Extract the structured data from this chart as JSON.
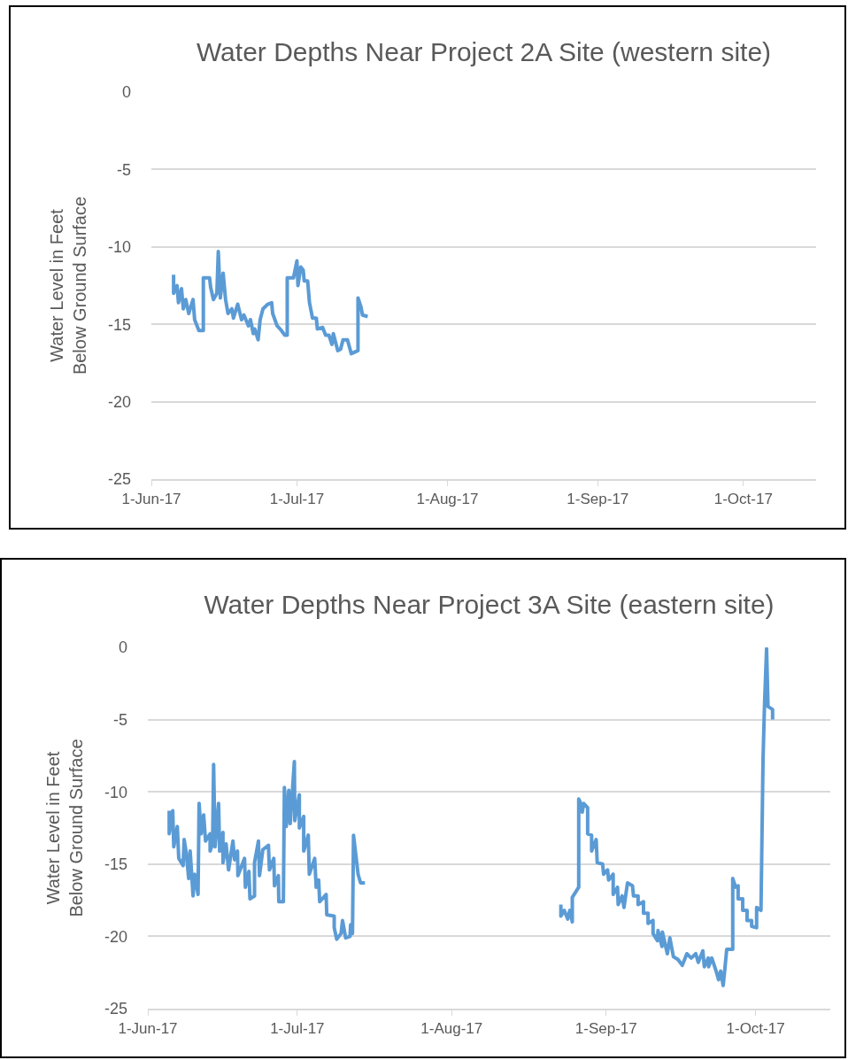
{
  "chart_data": [
    {
      "type": "line",
      "title": "Water Depths Near Project 2A Site (western site)",
      "ylabel": "Water Level in Feet\nBelow Ground Surface",
      "grid": "y",
      "marker": "none",
      "line_style": "solid",
      "xlim": [
        "2017-06-01",
        "2017-10-16"
      ],
      "xticks": [
        {
          "value": "2017-06-01",
          "label": "1-Jun-17"
        },
        {
          "value": "2017-07-01",
          "label": "1-Jul-17"
        },
        {
          "value": "2017-08-01",
          "label": "1-Aug-17"
        },
        {
          "value": "2017-09-01",
          "label": "1-Sep-17"
        },
        {
          "value": "2017-10-01",
          "label": "1-Oct-17"
        }
      ],
      "ylim": [
        -25,
        0
      ],
      "yticks": [
        -25,
        -20,
        -15,
        -10,
        -5,
        0
      ],
      "x": [
        "2017-06-05T14:00",
        "2017-06-05T14:00",
        "2017-06-06T07:00",
        "2017-06-06T14:00",
        "2017-06-07T05:00",
        "2017-06-07T14:00",
        "2017-06-08T02:00",
        "2017-06-08T17:00",
        "2017-06-09T14:00",
        "2017-06-09T22:00",
        "2017-06-10T19:00",
        "2017-06-11T17:00",
        "2017-06-11T17:00",
        "2017-06-13T00:00",
        "2017-06-13T05:00",
        "2017-06-13T19:00",
        "2017-06-14T12:00",
        "2017-06-14T19:00",
        "2017-06-15T05:00",
        "2017-06-15T19:00",
        "2017-06-16T07:00",
        "2017-06-16T19:00",
        "2017-06-17T14:00",
        "2017-06-17T22:00",
        "2017-06-18T19:00",
        "2017-06-19T14:00",
        "2017-06-20T02:00",
        "2017-06-21T00:00",
        "2017-06-21T10:00",
        "2017-06-22T00:00",
        "2017-06-22T07:00",
        "2017-06-23T00:00",
        "2017-06-23T10:00",
        "2017-06-24T00:00",
        "2017-06-25T00:00",
        "2017-06-25T19:00",
        "2017-06-26T00:00",
        "2017-06-26T22:00",
        "2017-06-27T19:00",
        "2017-06-28T12:00",
        "2017-06-29T00:00",
        "2017-06-29T00:00",
        "2017-06-30T07:00",
        "2017-07-01T00:00",
        "2017-07-01T05:00",
        "2017-07-01T19:00",
        "2017-07-02T07:00",
        "2017-07-02T12:00",
        "2017-07-03T05:00",
        "2017-07-03T14:00",
        "2017-07-04T05:00",
        "2017-07-05T00:00",
        "2017-07-05T05:00",
        "2017-07-06T07:00",
        "2017-07-06T22:00",
        "2017-07-07T14:00",
        "2017-07-08T05:00",
        "2017-07-08T12:00",
        "2017-07-09T10:00",
        "2017-07-10T00:00",
        "2017-07-10T12:00",
        "2017-07-11T10:00",
        "2017-07-12T05:00",
        "2017-07-13T14:00",
        "2017-07-13T14:00",
        "2017-07-14T05:00",
        "2017-07-14T12:00",
        "2017-07-15T14:00"
      ],
      "series": [
        {
          "color": "#5b9bd5",
          "values": [
            -11.8,
            -13.0,
            -12.5,
            -13.6,
            -12.7,
            -14.0,
            -13.4,
            -14.3,
            -13.4,
            -14.7,
            -15.4,
            -15.4,
            -12.0,
            -12.0,
            -12.6,
            -13.4,
            -13.0,
            -10.3,
            -13.3,
            -11.7,
            -13.4,
            -14.3,
            -14.0,
            -14.6,
            -13.7,
            -14.7,
            -14.4,
            -15.1,
            -14.7,
            -15.6,
            -15.3,
            -16.0,
            -14.7,
            -14.0,
            -13.7,
            -13.6,
            -14.3,
            -15.1,
            -15.4,
            -15.7,
            -15.7,
            -12.0,
            -12.0,
            -10.9,
            -12.5,
            -11.3,
            -11.5,
            -12.2,
            -12.2,
            -13.6,
            -14.6,
            -14.6,
            -15.3,
            -15.2,
            -15.7,
            -15.7,
            -16.3,
            -15.6,
            -16.7,
            -16.6,
            -16.0,
            -16.0,
            -16.9,
            -16.7,
            -13.3,
            -13.9,
            -14.4,
            -14.5
          ]
        }
      ]
    },
    {
      "type": "line",
      "title": "Water Depths Near Project 3A Site (eastern site)",
      "ylabel": "Water Level in Feet\nBelow Ground Surface",
      "grid": "y",
      "marker": "none",
      "line_style": "solid",
      "xlim": [
        "2017-06-01",
        "2017-10-16"
      ],
      "xticks": [
        {
          "value": "2017-06-01",
          "label": "1-Jun-17"
        },
        {
          "value": "2017-07-01",
          "label": "1-Jul-17"
        },
        {
          "value": "2017-08-01",
          "label": "1-Aug-17"
        },
        {
          "value": "2017-09-01",
          "label": "1-Sep-17"
        },
        {
          "value": "2017-10-01",
          "label": "1-Oct-17"
        }
      ],
      "ylim": [
        -25,
        0
      ],
      "yticks": [
        -25,
        -20,
        -15,
        -10,
        -5,
        0
      ],
      "x": [
        "2017-06-05T07:00",
        "2017-06-05T07:00",
        "2017-06-06T00:00",
        "2017-06-06T05:00",
        "2017-06-06T22:00",
        "2017-06-07T05:00",
        "2017-06-08T02:00",
        "2017-06-08T07:00",
        "2017-06-08T17:00",
        "2017-06-09T05:00",
        "2017-06-09T12:00",
        "2017-06-10T02:00",
        "2017-06-10T10:00",
        "2017-06-11T02:00",
        "2017-06-11T07:00",
        "2017-06-11T17:00",
        "2017-06-12T05:00",
        "2017-06-12T14:00",
        "2017-06-13T12:00",
        "2017-06-13T12:00",
        "2017-06-14T00:00",
        "2017-06-14T05:00",
        "2017-06-14T12:00",
        "2017-06-15T05:00",
        "2017-06-15T10:00",
        "2017-06-16T02:00",
        "2017-06-16T02:00",
        "2017-06-16T17:00",
        "2017-06-17T05:00",
        "2017-06-18T02:00",
        "2017-06-18T10:00",
        "2017-06-19T00:00",
        "2017-06-19T02:00",
        "2017-06-20T10:00",
        "2017-06-20T14:00",
        "2017-06-21T07:00",
        "2017-06-21T12:00",
        "2017-06-22T10:00",
        "2017-06-22T10:00",
        "2017-06-23T05:00",
        "2017-06-23T10:00",
        "2017-06-24T02:00",
        "2017-06-25T05:00",
        "2017-06-25T10:00",
        "2017-06-26T07:00",
        "2017-06-26T10:00",
        "2017-06-27T05:00",
        "2017-06-27T07:00",
        "2017-06-28T05:00",
        "2017-06-28T10:00",
        "2017-06-28T19:00",
        "2017-06-29T07:00",
        "2017-06-29T14:00",
        "2017-06-30T10:00",
        "2017-06-30T12:00",
        "2017-07-01T10:00",
        "2017-07-01T10:00",
        "2017-07-02T07:00",
        "2017-07-02T07:00",
        "2017-07-03T05:00",
        "2017-07-03T10:00",
        "2017-07-04T12:00",
        "2017-07-04T19:00",
        "2017-07-05T07:00",
        "2017-07-05T12:00",
        "2017-07-06T19:00",
        "2017-07-06T22:00",
        "2017-07-08T10:00",
        "2017-07-08T10:00",
        "2017-07-08T22:00",
        "2017-07-09T19:00",
        "2017-07-10T02:00",
        "2017-07-10T17:00",
        "2017-07-11T14:00",
        "2017-07-11T17:00",
        "2017-07-12T02:00",
        "2017-07-12T07:00",
        "2017-07-13T05:00",
        "2017-07-13T17:00",
        "2017-07-14T14:00",
        "2017-07-25",
        "2017-08-22T22:00",
        "2017-08-22T22:00",
        "2017-08-23T14:00",
        "2017-08-24T07:00",
        "2017-08-24T17:00",
        "2017-08-25T05:00",
        "2017-08-25T05:00",
        "2017-08-26T12:00",
        "2017-08-26T12:00",
        "2017-08-26T19:00",
        "2017-08-27T05:00",
        "2017-08-27T12:00",
        "2017-08-28T07:00",
        "2017-08-28T07:00",
        "2017-08-29T02:00",
        "2017-08-29T02:00",
        "2017-08-30T00:00",
        "2017-08-30T05:00",
        "2017-08-31T07:00",
        "2017-08-31T12:00",
        "2017-09-01T07:00",
        "2017-09-01T12:00",
        "2017-09-02T10:00",
        "2017-09-02T10:00",
        "2017-09-03T07:00",
        "2017-09-03T10:00",
        "2017-09-04T05:00",
        "2017-09-04T14:00",
        "2017-09-05T07:00",
        "2017-09-06T07:00",
        "2017-09-06T12:00",
        "2017-09-07T10:00",
        "2017-09-07T10:00",
        "2017-09-08T12:00",
        "2017-09-08T12:00",
        "2017-09-09T10:00",
        "2017-09-09T10:00",
        "2017-09-10T10:00",
        "2017-09-10T10:00",
        "2017-09-11T07:00",
        "2017-09-11T10:00",
        "2017-09-12T05:00",
        "2017-09-12T07:00",
        "2017-09-13T07:00",
        "2017-09-13T19:00",
        "2017-09-14T12:00",
        "2017-09-15T10:00",
        "2017-09-16T07:00",
        "2017-09-17T05:00",
        "2017-09-18T02:00",
        "2017-09-19T00:00",
        "2017-09-19T12:00",
        "2017-09-20T10:00",
        "2017-09-20T17:00",
        "2017-09-21T12:00",
        "2017-09-21T14:00",
        "2017-09-22T05:00",
        "2017-09-23T02:00",
        "2017-09-23T14:00",
        "2017-09-24T00:00",
        "2017-09-24T12:00",
        "2017-09-24T19:00",
        "2017-09-25T05:00",
        "2017-09-26T10:00",
        "2017-09-26T10:00",
        "2017-09-27T00:00",
        "2017-09-27T12:00",
        "2017-09-27T12:00",
        "2017-09-28T10:00",
        "2017-09-28T10:00",
        "2017-09-29T07:00",
        "2017-09-29T07:00",
        "2017-09-30T05:00",
        "2017-09-30T05:00",
        "2017-10-01T05:00",
        "2017-10-01T05:00",
        "2017-10-02T02:00",
        "2017-10-02T12:00",
        "2017-10-02T19:00",
        "2017-10-03T05:00",
        "2017-10-03T12:00",
        "2017-10-04T10:00",
        "2017-10-04T10:00"
      ],
      "series": [
        {
          "color": "#5b9bd5",
          "values": [
            -11.3,
            -12.9,
            -11.3,
            -13.8,
            -12.4,
            -14.6,
            -15.1,
            -13.3,
            -14.2,
            -16.0,
            -14.1,
            -17.2,
            -15.7,
            -17.1,
            -10.8,
            -12.9,
            -11.6,
            -13.4,
            -12.9,
            -14.1,
            -13.6,
            -8.1,
            -13.8,
            -10.8,
            -14.1,
            -12.8,
            -14.9,
            -13.6,
            -15.4,
            -13.4,
            -14.7,
            -14.1,
            -15.8,
            -14.6,
            -16.6,
            -15.5,
            -17.4,
            -17.2,
            -14.9,
            -13.4,
            -15.8,
            -14.0,
            -13.7,
            -15.4,
            -14.6,
            -16.5,
            -15.8,
            -17.6,
            -17.6,
            -9.7,
            -12.4,
            -9.9,
            -12.2,
            -7.9,
            -12.0,
            -10.2,
            -12.5,
            -11.7,
            -14.1,
            -13.0,
            -15.7,
            -14.6,
            -16.6,
            -16.1,
            -17.6,
            -17.1,
            -18.5,
            -18.6,
            -19.4,
            -20.2,
            -19.8,
            -18.9,
            -20.1,
            -20.0,
            -19.2,
            -19.8,
            -13.0,
            -15.7,
            -16.3,
            -16.3,
            null,
            -17.8,
            -18.6,
            -18.2,
            -18.8,
            -18.2,
            -19.0,
            -17.3,
            -16.6,
            -10.5,
            -10.7,
            -11.4,
            -10.8,
            -11.1,
            -12.9,
            -13.0,
            -14.1,
            -13.3,
            -14.9,
            -15.0,
            -15.7,
            -15.4,
            -16.1,
            -15.7,
            -17.1,
            -16.6,
            -17.8,
            -17.2,
            -18.0,
            -16.3,
            -16.5,
            -17.2,
            -17.2,
            -17.8,
            -17.6,
            -18.4,
            -18.4,
            -19.1,
            -18.9,
            -19.8,
            -20.3,
            -19.6,
            -20.7,
            -19.7,
            -21.2,
            -20.1,
            -21.4,
            -21.6,
            -22.0,
            -21.2,
            -21.5,
            -21.2,
            -21.8,
            -21.0,
            -22.1,
            -21.5,
            -22.1,
            -21.5,
            -22.4,
            -23.0,
            -22.4,
            -23.4,
            -22.4,
            -20.9,
            -20.9,
            -16.0,
            -16.6,
            -16.5,
            -17.4,
            -17.4,
            -18.2,
            -18.2,
            -18.9,
            -18.9,
            -19.3,
            -19.4,
            -18.0,
            -18.2,
            -7.7,
            -4.0,
            -0.1,
            -4.1,
            -4.3,
            -5.0
          ]
        }
      ]
    }
  ]
}
